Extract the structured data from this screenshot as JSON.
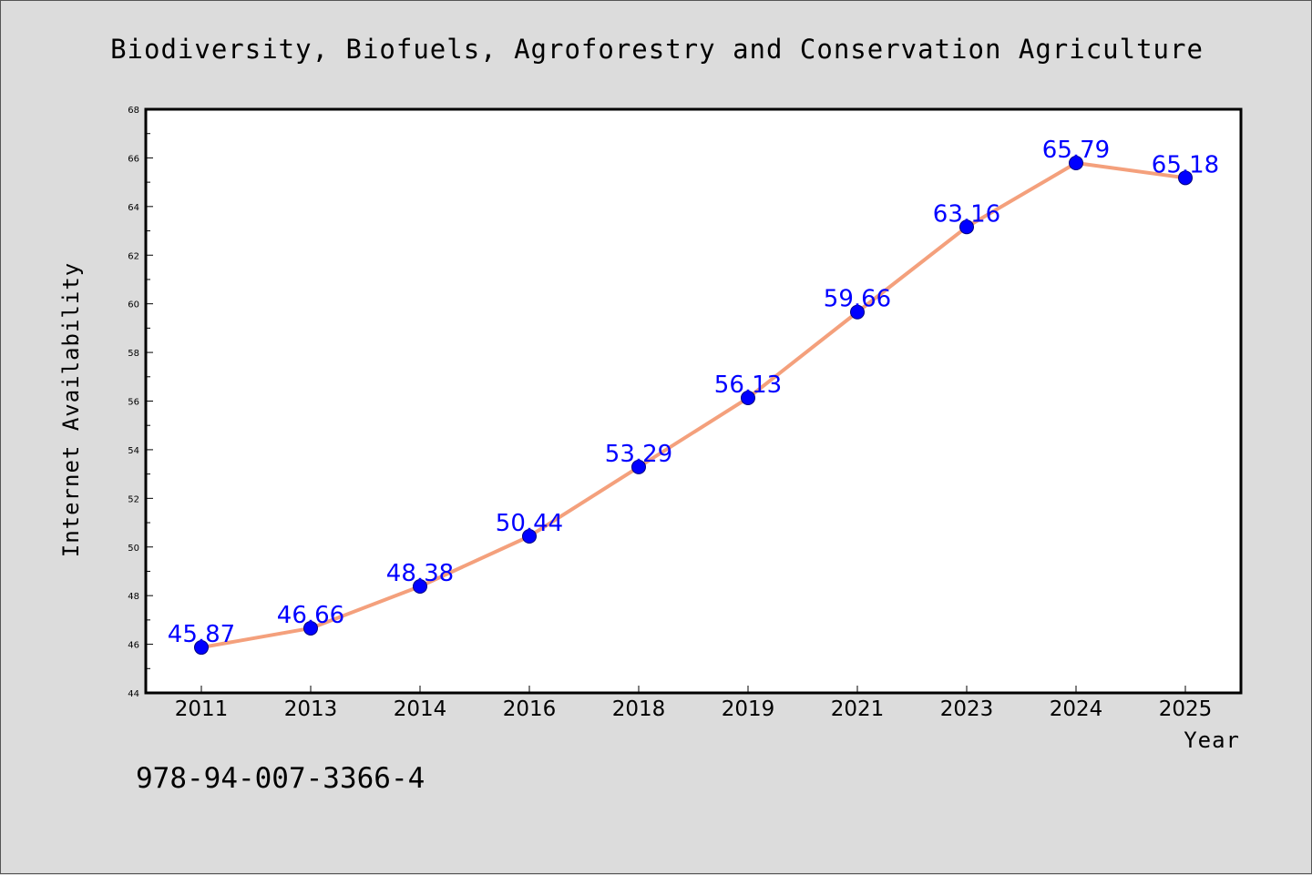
{
  "chart_data": {
    "type": "line",
    "title": "Biodiversity, Biofuels, Agroforestry and Conservation Agriculture",
    "xlabel": "Year",
    "ylabel": "Internet Availability",
    "categories": [
      "2011",
      "2013",
      "2014",
      "2016",
      "2018",
      "2019",
      "2021",
      "2023",
      "2024",
      "2025"
    ],
    "series": [
      {
        "values": [
          45.87,
          46.66,
          48.38,
          50.44,
          53.29,
          56.13,
          59.66,
          63.16,
          65.79,
          65.18
        ]
      }
    ],
    "data_labels": [
      "45.87",
      "46.66",
      "48.38",
      "50.44",
      "53.29",
      "56.13",
      "59.66",
      "63.16",
      "65.79",
      "65.18"
    ],
    "ylim": [
      44,
      68
    ],
    "yticks": [
      "44",
      "46",
      "48",
      "50",
      "52",
      "54",
      "56",
      "58",
      "60",
      "62",
      "64",
      "66",
      "68"
    ],
    "grid": false,
    "legend": "none",
    "colors": {
      "line": "#f4a07c",
      "marker": "#0000ff",
      "marker_edge": "#000080",
      "labels": "#0000ff",
      "background": "#dcdcdc",
      "plot_background": "#ffffff"
    }
  },
  "footnote": "978-94-007-3366-4"
}
